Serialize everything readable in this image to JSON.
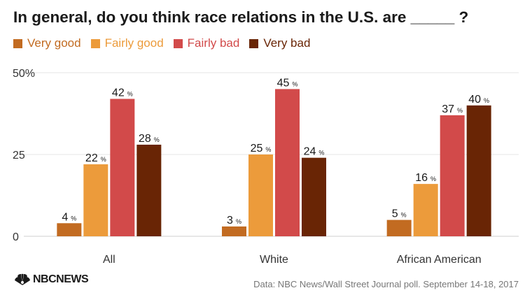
{
  "title": "In general, do you think race relations in the U.S. are _____ ?",
  "source": "Data: NBC News/Wall Street Journal poll. September 14-18, 2017",
  "logo": "NBCNEWS",
  "chart_data": {
    "type": "bar",
    "categories": [
      "All",
      "White",
      "African American"
    ],
    "series": [
      {
        "name": "Very good",
        "color": "#c26b21",
        "values": [
          4,
          3,
          5
        ]
      },
      {
        "name": "Fairly good",
        "color": "#ec9b3b",
        "values": [
          22,
          25,
          16
        ]
      },
      {
        "name": "Fairly bad",
        "color": "#d24a4a",
        "values": [
          42,
          45,
          37
        ]
      },
      {
        "name": "Very bad",
        "color": "#692505",
        "values": [
          28,
          24,
          40
        ]
      }
    ],
    "value_suffix": "%",
    "ylim": [
      0,
      50
    ],
    "y_ticks": [
      "50%",
      "25",
      "0"
    ],
    "y_tick_values": [
      50,
      25,
      0
    ],
    "xlabel": "",
    "ylabel": "",
    "grid": true,
    "legend_position": "top-left"
  }
}
